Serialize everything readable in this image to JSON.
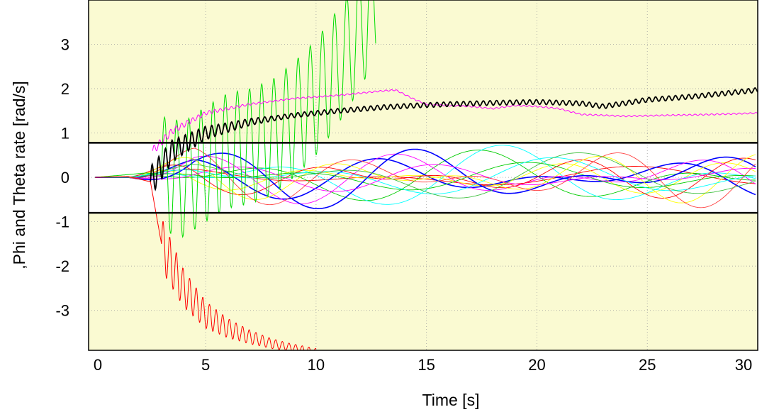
{
  "chart_data": {
    "type": "line",
    "xlabel": "Time [s]",
    "ylabel": ",Phi and Theta rate [rad/s]",
    "xlim": [
      -0.3,
      30
    ],
    "ylim": [
      -3.9,
      4
    ],
    "xticks": [
      0,
      5,
      10,
      15,
      20,
      25,
      30
    ],
    "yticks": [
      -3,
      -2,
      -1,
      0,
      1,
      2,
      3
    ],
    "grid": true,
    "band": [
      -0.8,
      0.78
    ],
    "colors": {
      "background": "#fafad2",
      "band_fill": "#ffffff",
      "frame": "#000000",
      "grid": "#a0a0a0"
    },
    "series": [
      {
        "color": "#00dd00",
        "x": [
          0,
          1.2,
          2.3,
          3.3,
          4.0,
          5,
          6,
          7,
          8,
          9,
          10,
          11,
          12,
          12.7
        ],
        "y": [
          0,
          0.05,
          0.1,
          0.05,
          -0.05,
          0.3,
          0.6,
          0.7,
          0.9,
          1.3,
          1.8,
          2.5,
          3.3,
          4
        ],
        "osc_start": 3.0,
        "osc_amp": 1.3,
        "osc_period": 0.55
      },
      {
        "color": "#ff00ff",
        "x": [
          2.6,
          3.5,
          5,
          7,
          9,
          11,
          13,
          13.6,
          14.5,
          15,
          16,
          17,
          18,
          19,
          20,
          21,
          22,
          24,
          26,
          28,
          30
        ],
        "y": [
          0.6,
          1.05,
          1.45,
          1.65,
          1.78,
          1.85,
          1.95,
          1.97,
          1.75,
          1.65,
          1.62,
          1.6,
          1.55,
          1.62,
          1.6,
          1.55,
          1.42,
          1.38,
          1.4,
          1.42,
          1.45
        ],
        "osc_start": 2.6,
        "osc_amp": 0.1,
        "osc_period": 0.25
      },
      {
        "color": "#000000",
        "x": [
          2.5,
          3.5,
          5,
          7,
          9,
          11,
          13,
          14.5,
          16,
          18,
          20,
          22,
          23,
          25,
          27,
          30
        ],
        "y": [
          -0.1,
          0.6,
          1.0,
          1.25,
          1.4,
          1.5,
          1.58,
          1.62,
          1.65,
          1.68,
          1.7,
          1.67,
          1.6,
          1.75,
          1.82,
          1.97
        ],
        "osc_start": 2.5,
        "osc_amp": 0.35,
        "osc_period": 0.3
      },
      {
        "color": "#ff0000",
        "x": [
          0,
          1.5,
          2.5,
          3.0,
          4,
          5,
          6,
          7,
          8,
          9,
          10
        ],
        "y": [
          0,
          0.02,
          -0.1,
          -1.5,
          -2.5,
          -3.1,
          -3.4,
          -3.6,
          -3.75,
          -3.85,
          -3.95
        ],
        "osc_start": 3.0,
        "osc_amp": 0.6,
        "osc_period": 0.3
      }
    ]
  }
}
